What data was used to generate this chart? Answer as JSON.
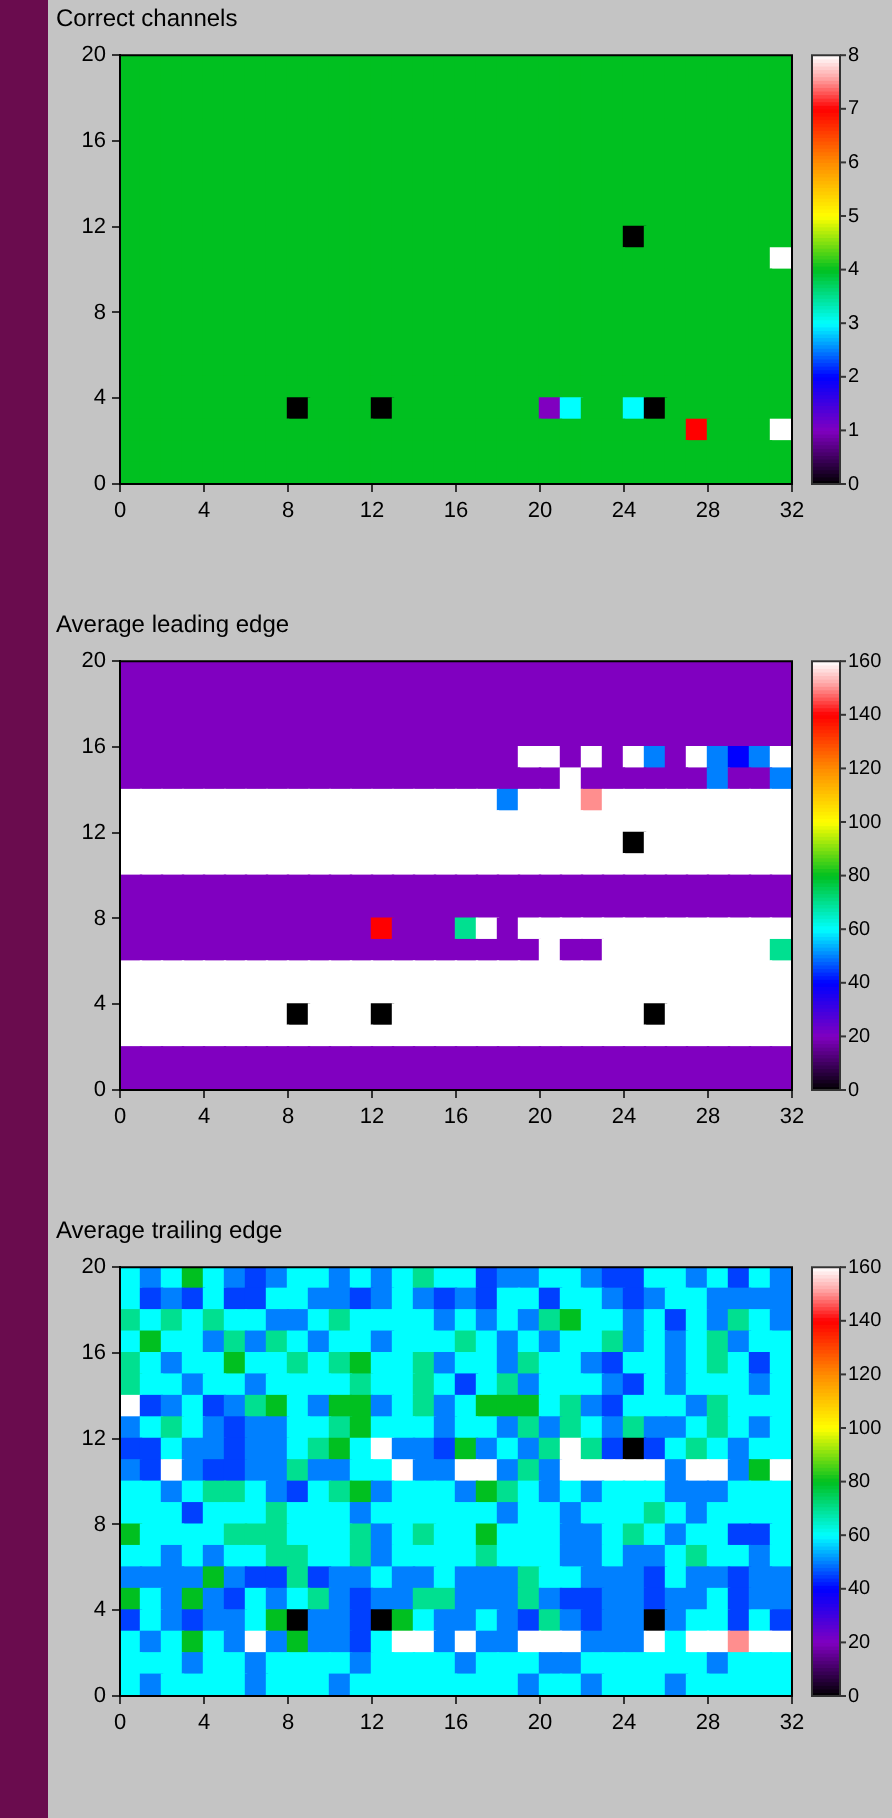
{
  "chart_data": [
    {
      "type": "heatmap",
      "title": "Correct channels",
      "xlim": [
        0,
        32
      ],
      "ylim": [
        0,
        20
      ],
      "xticks": [
        0,
        4,
        8,
        12,
        16,
        20,
        24,
        28,
        32
      ],
      "yticks": [
        0,
        4,
        8,
        12,
        16,
        20
      ],
      "clim": [
        0,
        8
      ],
      "cticks": [
        0,
        1,
        2,
        3,
        4,
        5,
        6,
        7,
        8
      ],
      "cells": [
        [
          4,
          4,
          4,
          4,
          4,
          4,
          4,
          4,
          4,
          4,
          4,
          4,
          4,
          4,
          4,
          4,
          4,
          4,
          4,
          4,
          4,
          4,
          4,
          4,
          4,
          4,
          4,
          4,
          4,
          4,
          4,
          4
        ],
        [
          4,
          4,
          4,
          4,
          4,
          4,
          4,
          4,
          4,
          4,
          4,
          4,
          4,
          4,
          4,
          4,
          4,
          4,
          4,
          4,
          4,
          4,
          4,
          4,
          4,
          4,
          4,
          4,
          4,
          4,
          4,
          4
        ],
        [
          4,
          4,
          4,
          4,
          4,
          4,
          4,
          4,
          4,
          4,
          4,
          4,
          4,
          4,
          4,
          4,
          4,
          4,
          4,
          4,
          4,
          4,
          4,
          4,
          4,
          4,
          4,
          4,
          4,
          4,
          4,
          4
        ],
        [
          4,
          4,
          4,
          4,
          4,
          4,
          4,
          4,
          4,
          4,
          4,
          4,
          4,
          4,
          4,
          4,
          4,
          4,
          4,
          4,
          4,
          4,
          4,
          4,
          4,
          4,
          4,
          4,
          4,
          4,
          4,
          4
        ],
        [
          4,
          4,
          4,
          4,
          4,
          4,
          4,
          4,
          4,
          4,
          4,
          4,
          4,
          4,
          4,
          4,
          4,
          4,
          4,
          4,
          4,
          4,
          4,
          4,
          4,
          4,
          4,
          4,
          4,
          4,
          4,
          4
        ],
        [
          4,
          4,
          4,
          4,
          4,
          4,
          4,
          4,
          4,
          4,
          4,
          4,
          4,
          4,
          4,
          4,
          4,
          4,
          4,
          4,
          4,
          4,
          4,
          4,
          4,
          4,
          4,
          4,
          4,
          4,
          4,
          4
        ],
        [
          4,
          4,
          4,
          4,
          4,
          4,
          4,
          4,
          4,
          4,
          4,
          4,
          4,
          4,
          4,
          4,
          4,
          4,
          4,
          4,
          4,
          4,
          4,
          4,
          4,
          4,
          4,
          4,
          4,
          4,
          4,
          4
        ],
        [
          4,
          4,
          4,
          4,
          4,
          4,
          4,
          4,
          4,
          4,
          4,
          4,
          4,
          4,
          4,
          4,
          4,
          4,
          4,
          4,
          4,
          4,
          4,
          4,
          4,
          4,
          4,
          4,
          4,
          4,
          4,
          4
        ],
        [
          4,
          4,
          4,
          4,
          4,
          4,
          4,
          4,
          4,
          4,
          4,
          4,
          4,
          4,
          4,
          4,
          4,
          4,
          4,
          4,
          4,
          4,
          4,
          4,
          0,
          4,
          4,
          4,
          4,
          4,
          4,
          4
        ],
        [
          4,
          4,
          4,
          4,
          4,
          4,
          4,
          4,
          4,
          4,
          4,
          4,
          4,
          4,
          4,
          4,
          4,
          4,
          4,
          4,
          4,
          4,
          4,
          4,
          4,
          4,
          4,
          4,
          4,
          4,
          4,
          8
        ],
        [
          4,
          4,
          4,
          4,
          4,
          4,
          4,
          4,
          4,
          4,
          4,
          4,
          4,
          4,
          4,
          4,
          4,
          4,
          4,
          4,
          4,
          4,
          4,
          4,
          4,
          4,
          4,
          4,
          4,
          4,
          4,
          4
        ],
        [
          4,
          4,
          4,
          4,
          4,
          4,
          4,
          4,
          4,
          4,
          4,
          4,
          4,
          4,
          4,
          4,
          4,
          4,
          4,
          4,
          4,
          4,
          4,
          4,
          4,
          4,
          4,
          4,
          4,
          4,
          4,
          4
        ],
        [
          4,
          4,
          4,
          4,
          4,
          4,
          4,
          4,
          4,
          4,
          4,
          4,
          4,
          4,
          4,
          4,
          4,
          4,
          4,
          4,
          4,
          4,
          4,
          4,
          4,
          4,
          4,
          4,
          4,
          4,
          4,
          4
        ],
        [
          4,
          4,
          4,
          4,
          4,
          4,
          4,
          4,
          4,
          4,
          4,
          4,
          4,
          4,
          4,
          4,
          4,
          4,
          4,
          4,
          4,
          4,
          4,
          4,
          4,
          4,
          4,
          4,
          4,
          4,
          4,
          4
        ],
        [
          4,
          4,
          4,
          4,
          4,
          4,
          4,
          4,
          4,
          4,
          4,
          4,
          4,
          4,
          4,
          4,
          4,
          4,
          4,
          4,
          4,
          4,
          4,
          4,
          4,
          4,
          4,
          4,
          4,
          4,
          4,
          4
        ],
        [
          4,
          4,
          4,
          4,
          4,
          4,
          4,
          4,
          4,
          4,
          4,
          4,
          4,
          4,
          4,
          4,
          4,
          4,
          4,
          4,
          4,
          4,
          4,
          4,
          4,
          4,
          4,
          4,
          4,
          4,
          4,
          4
        ],
        [
          4,
          4,
          4,
          4,
          4,
          4,
          4,
          4,
          0,
          4,
          4,
          4,
          0,
          4,
          4,
          4,
          4,
          4,
          4,
          4,
          1,
          3,
          4,
          4,
          3,
          0,
          4,
          4,
          4,
          4,
          4,
          4
        ],
        [
          4,
          4,
          4,
          4,
          4,
          4,
          4,
          4,
          4,
          4,
          4,
          4,
          4,
          4,
          4,
          4,
          4,
          4,
          4,
          4,
          4,
          4,
          4,
          4,
          4,
          4,
          4,
          7,
          4,
          4,
          4,
          8
        ],
        [
          4,
          4,
          4,
          4,
          4,
          4,
          4,
          4,
          4,
          4,
          4,
          4,
          4,
          4,
          4,
          4,
          4,
          4,
          4,
          4,
          4,
          4,
          4,
          4,
          4,
          4,
          4,
          4,
          4,
          4,
          4,
          4
        ],
        [
          4,
          4,
          4,
          4,
          4,
          4,
          4,
          4,
          4,
          4,
          4,
          4,
          4,
          4,
          4,
          4,
          4,
          4,
          4,
          4,
          4,
          4,
          4,
          4,
          4,
          4,
          4,
          4,
          4,
          4,
          4,
          4
        ]
      ]
    },
    {
      "type": "heatmap",
      "title": "Average leading edge",
      "xlim": [
        0,
        32
      ],
      "ylim": [
        0,
        20
      ],
      "xticks": [
        0,
        4,
        8,
        12,
        16,
        20,
        24,
        28,
        32
      ],
      "yticks": [
        0,
        4,
        8,
        12,
        16,
        20
      ],
      "clim": [
        0,
        160
      ],
      "cticks": [
        0,
        20,
        40,
        60,
        80,
        100,
        120,
        140,
        160
      ],
      "cells": [
        [
          20,
          20,
          20,
          20,
          20,
          20,
          20,
          20,
          20,
          20,
          20,
          20,
          20,
          20,
          20,
          20,
          20,
          20,
          20,
          20,
          20,
          20,
          20,
          20,
          20,
          20,
          20,
          20,
          20,
          20,
          20,
          20
        ],
        [
          20,
          20,
          20,
          20,
          20,
          20,
          20,
          20,
          20,
          20,
          20,
          20,
          20,
          20,
          20,
          20,
          20,
          20,
          20,
          20,
          20,
          20,
          20,
          20,
          20,
          20,
          20,
          20,
          20,
          20,
          20,
          20
        ],
        [
          20,
          20,
          20,
          20,
          20,
          20,
          20,
          20,
          20,
          20,
          20,
          20,
          20,
          20,
          20,
          20,
          20,
          20,
          20,
          20,
          20,
          20,
          20,
          20,
          20,
          20,
          20,
          20,
          20,
          20,
          20,
          20
        ],
        [
          20,
          20,
          20,
          20,
          20,
          20,
          20,
          20,
          20,
          20,
          20,
          20,
          20,
          20,
          20,
          20,
          20,
          20,
          20,
          20,
          20,
          20,
          20,
          20,
          20,
          20,
          20,
          20,
          20,
          20,
          20,
          20
        ],
        [
          20,
          20,
          20,
          20,
          20,
          20,
          20,
          20,
          20,
          20,
          20,
          20,
          20,
          20,
          20,
          20,
          20,
          20,
          20,
          160,
          160,
          20,
          160,
          20,
          160,
          50,
          20,
          160,
          50,
          40,
          50,
          160
        ],
        [
          20,
          20,
          20,
          20,
          20,
          20,
          20,
          20,
          20,
          20,
          20,
          20,
          20,
          20,
          20,
          20,
          20,
          20,
          20,
          20,
          20,
          160,
          20,
          20,
          20,
          20,
          20,
          20,
          50,
          20,
          20,
          50
        ],
        [
          160,
          160,
          160,
          160,
          160,
          160,
          160,
          160,
          160,
          160,
          160,
          160,
          160,
          160,
          160,
          160,
          160,
          160,
          50,
          160,
          160,
          160,
          150,
          160,
          160,
          160,
          160,
          160,
          160,
          160,
          160,
          160
        ],
        [
          160,
          160,
          160,
          160,
          160,
          160,
          160,
          160,
          160,
          160,
          160,
          160,
          160,
          160,
          160,
          160,
          160,
          160,
          160,
          160,
          160,
          160,
          160,
          160,
          160,
          160,
          160,
          160,
          160,
          160,
          160,
          160
        ],
        [
          160,
          160,
          160,
          160,
          160,
          160,
          160,
          160,
          160,
          160,
          160,
          160,
          160,
          160,
          160,
          160,
          160,
          160,
          160,
          160,
          160,
          160,
          160,
          160,
          0,
          160,
          160,
          160,
          160,
          160,
          160,
          160
        ],
        [
          160,
          160,
          160,
          160,
          160,
          160,
          160,
          160,
          160,
          160,
          160,
          160,
          160,
          160,
          160,
          160,
          160,
          160,
          160,
          160,
          160,
          160,
          160,
          160,
          160,
          160,
          160,
          160,
          160,
          160,
          160,
          160
        ],
        [
          20,
          20,
          20,
          20,
          20,
          20,
          20,
          20,
          20,
          20,
          20,
          20,
          20,
          20,
          20,
          20,
          20,
          20,
          20,
          20,
          20,
          20,
          20,
          20,
          20,
          20,
          20,
          20,
          20,
          20,
          20,
          20
        ],
        [
          20,
          20,
          20,
          20,
          20,
          20,
          20,
          20,
          20,
          20,
          20,
          20,
          20,
          20,
          20,
          20,
          20,
          20,
          20,
          20,
          20,
          20,
          20,
          20,
          20,
          20,
          20,
          20,
          20,
          20,
          20,
          20
        ],
        [
          20,
          20,
          20,
          20,
          20,
          20,
          20,
          20,
          20,
          20,
          20,
          20,
          140,
          20,
          20,
          20,
          70,
          160,
          20,
          160,
          160,
          160,
          160,
          160,
          160,
          160,
          160,
          160,
          160,
          160,
          160,
          160
        ],
        [
          20,
          20,
          20,
          20,
          20,
          20,
          20,
          20,
          20,
          20,
          20,
          20,
          20,
          20,
          20,
          20,
          20,
          20,
          20,
          20,
          160,
          20,
          20,
          160,
          160,
          160,
          160,
          160,
          160,
          160,
          160,
          70
        ],
        [
          160,
          160,
          160,
          160,
          160,
          160,
          160,
          160,
          160,
          160,
          160,
          160,
          160,
          160,
          160,
          160,
          160,
          160,
          160,
          160,
          160,
          160,
          160,
          160,
          160,
          160,
          160,
          160,
          160,
          160,
          160,
          160
        ],
        [
          160,
          160,
          160,
          160,
          160,
          160,
          160,
          160,
          160,
          160,
          160,
          160,
          160,
          160,
          160,
          160,
          160,
          160,
          160,
          160,
          160,
          160,
          160,
          160,
          160,
          160,
          160,
          160,
          160,
          160,
          160,
          160
        ],
        [
          160,
          160,
          160,
          160,
          160,
          160,
          160,
          160,
          0,
          160,
          160,
          160,
          0,
          160,
          160,
          160,
          160,
          160,
          160,
          160,
          160,
          160,
          160,
          160,
          160,
          0,
          160,
          160,
          160,
          160,
          160,
          160
        ],
        [
          160,
          160,
          160,
          160,
          160,
          160,
          160,
          160,
          160,
          160,
          160,
          160,
          160,
          160,
          160,
          160,
          160,
          160,
          160,
          160,
          160,
          160,
          160,
          160,
          160,
          160,
          160,
          160,
          160,
          160,
          160,
          160
        ],
        [
          20,
          20,
          20,
          20,
          20,
          20,
          20,
          20,
          20,
          20,
          20,
          20,
          20,
          20,
          20,
          20,
          20,
          20,
          20,
          20,
          20,
          20,
          20,
          20,
          20,
          20,
          20,
          20,
          20,
          20,
          20,
          20
        ],
        [
          20,
          20,
          20,
          20,
          20,
          20,
          20,
          20,
          20,
          20,
          20,
          20,
          20,
          20,
          20,
          20,
          20,
          20,
          20,
          20,
          20,
          20,
          20,
          20,
          20,
          20,
          20,
          20,
          20,
          20,
          20,
          20
        ]
      ]
    },
    {
      "type": "heatmap",
      "title": "Average trailing edge",
      "xlim": [
        0,
        32
      ],
      "ylim": [
        0,
        20
      ],
      "xticks": [
        0,
        4,
        8,
        12,
        16,
        20,
        24,
        28,
        32
      ],
      "yticks": [
        0,
        4,
        8,
        12,
        16,
        20
      ],
      "clim": [
        0,
        160
      ],
      "cticks": [
        0,
        20,
        40,
        60,
        80,
        100,
        120,
        140,
        160
      ],
      "cells": [
        [
          60,
          50,
          60,
          80,
          60,
          50,
          45,
          50,
          60,
          60,
          50,
          60,
          50,
          60,
          70,
          60,
          60,
          45,
          50,
          50,
          60,
          60,
          50,
          45,
          45,
          60,
          60,
          50,
          60,
          45,
          60,
          50
        ],
        [
          60,
          45,
          50,
          45,
          60,
          45,
          45,
          60,
          60,
          50,
          50,
          45,
          50,
          60,
          50,
          45,
          50,
          45,
          60,
          60,
          45,
          60,
          60,
          50,
          45,
          50,
          60,
          60,
          50,
          50,
          50,
          50
        ],
        [
          70,
          60,
          70,
          60,
          70,
          60,
          60,
          50,
          50,
          60,
          70,
          60,
          60,
          60,
          60,
          50,
          60,
          50,
          60,
          50,
          70,
          80,
          60,
          60,
          50,
          60,
          45,
          60,
          50,
          70,
          60,
          50
        ],
        [
          60,
          80,
          60,
          60,
          50,
          70,
          50,
          70,
          60,
          50,
          60,
          60,
          50,
          60,
          60,
          60,
          70,
          60,
          50,
          60,
          50,
          60,
          60,
          70,
          50,
          60,
          50,
          60,
          70,
          50,
          60,
          60
        ],
        [
          70,
          60,
          50,
          60,
          60,
          80,
          60,
          60,
          70,
          60,
          70,
          80,
          60,
          60,
          70,
          50,
          60,
          60,
          50,
          70,
          60,
          60,
          50,
          45,
          60,
          60,
          50,
          60,
          70,
          60,
          45,
          60
        ],
        [
          70,
          60,
          60,
          50,
          60,
          60,
          50,
          60,
          60,
          60,
          60,
          70,
          60,
          60,
          70,
          60,
          45,
          60,
          70,
          50,
          60,
          60,
          60,
          50,
          45,
          60,
          50,
          60,
          60,
          60,
          50,
          60
        ],
        [
          160,
          45,
          50,
          60,
          45,
          50,
          70,
          80,
          60,
          50,
          80,
          80,
          50,
          60,
          70,
          50,
          60,
          80,
          80,
          80,
          60,
          70,
          50,
          45,
          60,
          60,
          60,
          50,
          70,
          60,
          60,
          60
        ],
        [
          50,
          60,
          70,
          60,
          50,
          45,
          50,
          50,
          60,
          60,
          70,
          80,
          60,
          60,
          60,
          50,
          60,
          60,
          50,
          70,
          50,
          70,
          60,
          50,
          70,
          50,
          50,
          60,
          70,
          60,
          50,
          60
        ],
        [
          45,
          45,
          60,
          50,
          50,
          45,
          50,
          50,
          60,
          70,
          80,
          60,
          160,
          50,
          50,
          45,
          80,
          50,
          60,
          50,
          70,
          160,
          70,
          45,
          0,
          45,
          60,
          70,
          60,
          50,
          60,
          60
        ],
        [
          50,
          45,
          160,
          50,
          45,
          45,
          50,
          50,
          70,
          50,
          50,
          60,
          60,
          160,
          50,
          50,
          160,
          160,
          50,
          70,
          50,
          160,
          160,
          160,
          160,
          160,
          50,
          160,
          160,
          50,
          80,
          160
        ],
        [
          60,
          60,
          50,
          60,
          70,
          70,
          60,
          50,
          45,
          60,
          70,
          80,
          50,
          60,
          60,
          60,
          50,
          80,
          70,
          60,
          50,
          60,
          50,
          60,
          60,
          60,
          50,
          50,
          50,
          60,
          60,
          60
        ],
        [
          60,
          60,
          60,
          45,
          60,
          60,
          60,
          70,
          60,
          60,
          60,
          50,
          60,
          60,
          60,
          60,
          60,
          60,
          50,
          60,
          60,
          50,
          60,
          60,
          60,
          70,
          60,
          50,
          60,
          60,
          60,
          60
        ],
        [
          80,
          60,
          60,
          60,
          60,
          70,
          70,
          70,
          60,
          60,
          60,
          70,
          50,
          60,
          70,
          60,
          60,
          80,
          60,
          60,
          60,
          50,
          50,
          60,
          70,
          60,
          50,
          60,
          60,
          45,
          45,
          60
        ],
        [
          60,
          60,
          50,
          60,
          50,
          60,
          60,
          70,
          70,
          60,
          60,
          70,
          50,
          60,
          60,
          60,
          60,
          70,
          60,
          60,
          60,
          50,
          50,
          60,
          50,
          50,
          60,
          70,
          60,
          60,
          50,
          60
        ],
        [
          50,
          50,
          50,
          50,
          80,
          50,
          45,
          45,
          70,
          45,
          50,
          50,
          60,
          50,
          50,
          60,
          50,
          50,
          50,
          70,
          60,
          60,
          50,
          50,
          50,
          45,
          60,
          50,
          50,
          45,
          50,
          50
        ],
        [
          80,
          60,
          50,
          80,
          50,
          45,
          60,
          50,
          60,
          70,
          50,
          45,
          50,
          50,
          70,
          70,
          50,
          50,
          50,
          70,
          50,
          45,
          45,
          50,
          50,
          45,
          50,
          50,
          60,
          45,
          50,
          50
        ],
        [
          45,
          60,
          50,
          45,
          50,
          50,
          60,
          80,
          0,
          50,
          50,
          45,
          0,
          80,
          60,
          50,
          50,
          60,
          50,
          45,
          70,
          50,
          45,
          50,
          50,
          0,
          50,
          60,
          60,
          45,
          60,
          45
        ],
        [
          60,
          50,
          60,
          80,
          60,
          50,
          160,
          50,
          80,
          50,
          50,
          45,
          60,
          160,
          160,
          50,
          160,
          50,
          50,
          160,
          160,
          160,
          50,
          50,
          50,
          160,
          60,
          160,
          160,
          150,
          160,
          160
        ],
        [
          60,
          60,
          60,
          50,
          60,
          60,
          50,
          60,
          60,
          60,
          60,
          50,
          60,
          60,
          60,
          60,
          50,
          60,
          60,
          60,
          50,
          50,
          60,
          60,
          60,
          60,
          60,
          60,
          50,
          60,
          60,
          60
        ],
        [
          60,
          50,
          60,
          60,
          60,
          60,
          50,
          60,
          60,
          60,
          50,
          60,
          60,
          60,
          60,
          60,
          60,
          60,
          60,
          50,
          60,
          60,
          50,
          60,
          60,
          60,
          50,
          60,
          60,
          60,
          60,
          60
        ]
      ]
    }
  ]
}
